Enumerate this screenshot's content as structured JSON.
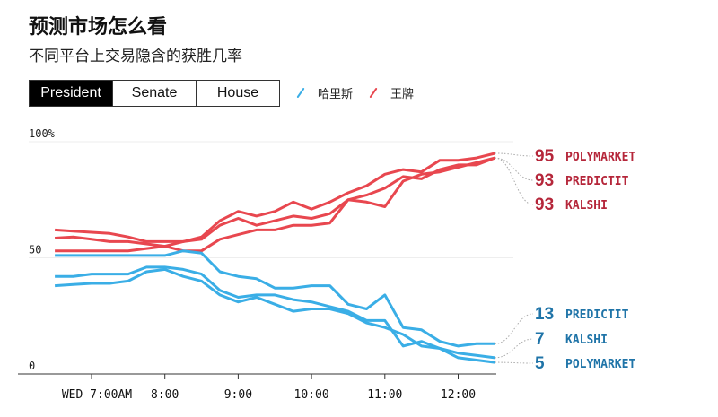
{
  "header": {
    "title": "预测市场怎么看",
    "subtitle": "不同平台上交易隐含的获胜几率"
  },
  "tabs": [
    {
      "label": "President",
      "active": true
    },
    {
      "label": "Senate",
      "active": false
    },
    {
      "label": "House",
      "active": false
    }
  ],
  "legend": [
    {
      "label": "哈里斯",
      "color": "#3aaee6"
    },
    {
      "label": "王牌",
      "color": "#e8474f"
    }
  ],
  "colors": {
    "harris_line": "#3aaee6",
    "trump_line": "#e8474f",
    "harris_label": "#1f74a8",
    "trump_label": "#b5263a"
  },
  "chart_data": {
    "type": "line",
    "ylim": [
      0,
      100
    ],
    "y_ticks": [
      {
        "value": 100,
        "label": "100%"
      },
      {
        "value": 50,
        "label": "50"
      },
      {
        "value": 0,
        "label": "0"
      }
    ],
    "x_ticks": [
      {
        "time": "07:00",
        "label": "WED 7:00AM"
      },
      {
        "time": "08:00",
        "label": "8:00"
      },
      {
        "time": "09:00",
        "label": "9:00"
      },
      {
        "time": "10:00",
        "label": "10:00"
      },
      {
        "time": "11:00",
        "label": "11:00"
      },
      {
        "time": "12:00",
        "label": "12:00"
      }
    ],
    "x": [
      "06:30",
      "06:45",
      "07:00",
      "07:15",
      "07:30",
      "07:45",
      "08:00",
      "08:15",
      "08:30",
      "08:45",
      "09:00",
      "09:15",
      "09:30",
      "09:45",
      "10:00",
      "10:15",
      "10:30",
      "10:45",
      "11:00",
      "11:15",
      "11:30",
      "11:45",
      "12:00",
      "12:15",
      "12:30"
    ],
    "series": [
      {
        "name": "POLYMARKET",
        "candidate": "trump",
        "final": "95",
        "values": [
          62,
          61.5,
          61,
          60.5,
          59,
          57,
          57,
          57,
          59,
          66,
          70,
          68,
          70,
          74,
          71,
          74,
          78,
          81,
          86,
          88,
          87,
          92,
          92,
          93,
          95
        ]
      },
      {
        "name": "PREDICTIT",
        "candidate": "trump",
        "final": "93",
        "values": [
          58.5,
          59,
          58,
          57,
          57,
          56,
          55,
          57,
          58,
          64,
          67,
          64,
          66,
          68,
          67,
          69,
          75,
          77,
          80,
          85,
          84,
          88,
          90,
          90,
          93
        ]
      },
      {
        "name": "KALSHI",
        "candidate": "trump",
        "final": "93",
        "values": [
          53,
          53,
          53,
          53,
          53,
          54,
          55,
          53,
          53,
          58,
          60,
          62,
          62,
          64,
          64,
          65,
          75,
          74,
          72,
          83,
          86,
          87,
          89,
          91,
          93
        ]
      },
      {
        "name": "PREDICTIT",
        "candidate": "harris",
        "final": "13",
        "values": [
          51,
          51,
          51,
          51,
          51,
          51,
          51,
          53,
          52,
          44,
          42,
          41,
          37,
          37,
          38,
          38,
          30,
          28,
          34,
          20,
          19,
          14,
          12,
          13,
          13
        ]
      },
      {
        "name": "KALSHI",
        "candidate": "harris",
        "final": "7",
        "values": [
          42,
          42,
          43,
          43,
          43,
          46,
          46,
          45,
          43,
          36,
          33,
          34,
          34,
          32,
          31,
          29,
          27,
          23,
          23,
          12,
          14,
          11,
          9,
          8,
          7
        ]
      },
      {
        "name": "POLYMARKET",
        "candidate": "harris",
        "final": "5",
        "values": [
          38,
          38.5,
          39,
          39,
          40,
          44,
          45,
          42,
          40,
          34,
          31,
          33,
          30,
          27,
          28,
          28,
          26,
          22,
          20,
          17,
          12,
          11,
          7,
          6,
          5
        ]
      }
    ]
  }
}
